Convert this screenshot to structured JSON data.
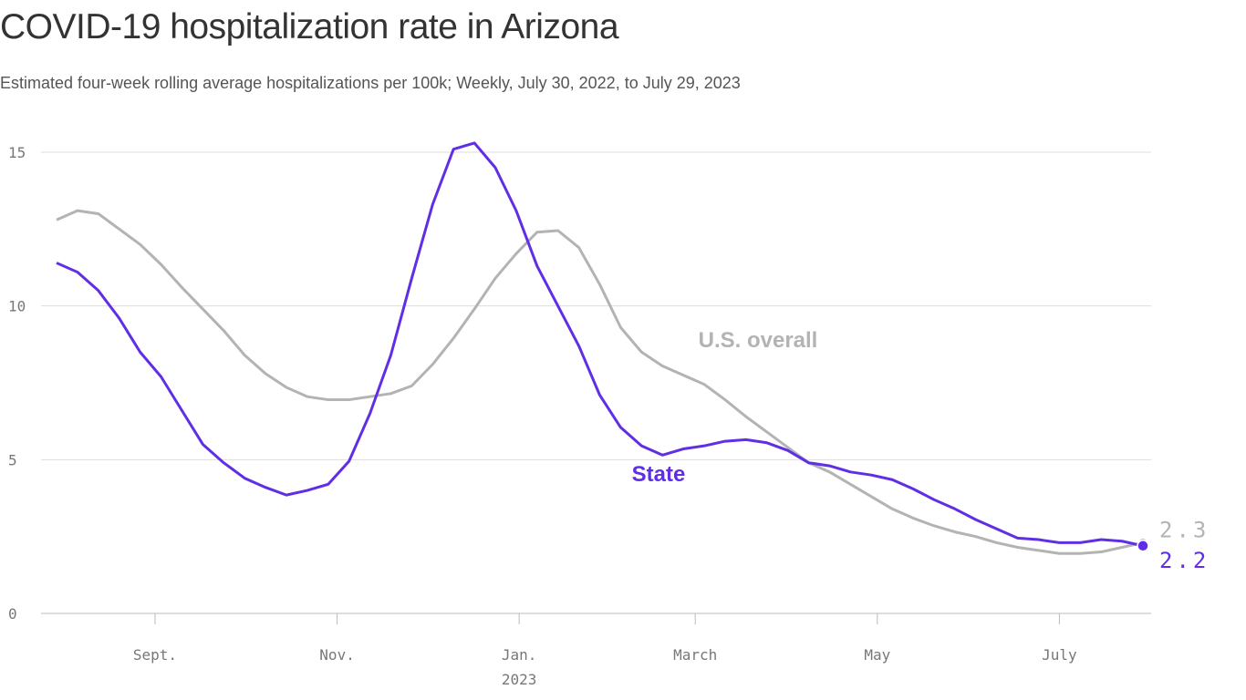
{
  "chart_data": {
    "type": "line",
    "title": "COVID-19 hospitalization rate in Arizona",
    "subtitle": "Estimated four-week rolling average hospitalizations per 100k; Weekly, July 30, 2022, to July 29, 2023",
    "x": [
      "2022-07-30",
      "2022-08-06",
      "2022-08-13",
      "2022-08-20",
      "2022-08-27",
      "2022-09-03",
      "2022-09-10",
      "2022-09-17",
      "2022-09-24",
      "2022-10-01",
      "2022-10-08",
      "2022-10-15",
      "2022-10-22",
      "2022-10-29",
      "2022-11-05",
      "2022-11-12",
      "2022-11-19",
      "2022-11-26",
      "2022-12-03",
      "2022-12-10",
      "2022-12-17",
      "2022-12-24",
      "2022-12-31",
      "2023-01-07",
      "2023-01-14",
      "2023-01-21",
      "2023-01-28",
      "2023-02-04",
      "2023-02-11",
      "2023-02-18",
      "2023-02-25",
      "2023-03-04",
      "2023-03-11",
      "2023-03-18",
      "2023-03-25",
      "2023-04-01",
      "2023-04-08",
      "2023-04-15",
      "2023-04-22",
      "2023-04-29",
      "2023-05-06",
      "2023-05-13",
      "2023-05-20",
      "2023-05-27",
      "2023-06-03",
      "2023-06-10",
      "2023-06-17",
      "2023-06-24",
      "2023-07-01",
      "2023-07-08",
      "2023-07-15",
      "2023-07-22",
      "2023-07-29"
    ],
    "series": [
      {
        "name": "State",
        "color": "#5f2ee5",
        "values": [
          11.4,
          11.1,
          10.5,
          9.6,
          8.5,
          7.7,
          6.6,
          5.5,
          4.9,
          4.4,
          4.1,
          3.85,
          4.0,
          4.2,
          4.95,
          6.5,
          8.4,
          10.9,
          13.3,
          15.1,
          15.3,
          14.5,
          13.1,
          11.3,
          10.0,
          8.7,
          7.1,
          6.05,
          5.45,
          5.15,
          5.35,
          5.45,
          5.6,
          5.65,
          5.55,
          5.3,
          4.9,
          4.8,
          4.6,
          4.5,
          4.35,
          4.05,
          3.7,
          3.4,
          3.05,
          2.75,
          2.45,
          2.4,
          2.3,
          2.3,
          2.4,
          2.35,
          2.2
        ]
      },
      {
        "name": "U.S. overall",
        "color": "#b3b3b3",
        "values": [
          12.8,
          13.1,
          13.0,
          12.5,
          12.0,
          11.35,
          10.6,
          9.9,
          9.2,
          8.4,
          7.8,
          7.35,
          7.05,
          6.95,
          6.95,
          7.05,
          7.15,
          7.4,
          8.1,
          8.95,
          9.9,
          10.9,
          11.7,
          12.4,
          12.45,
          11.9,
          10.7,
          9.3,
          8.5,
          8.05,
          7.75,
          7.45,
          6.95,
          6.4,
          5.9,
          5.4,
          4.9,
          4.6,
          4.2,
          3.8,
          3.4,
          3.1,
          2.85,
          2.65,
          2.5,
          2.3,
          2.15,
          2.05,
          1.95,
          1.95,
          2.0,
          2.15,
          2.3
        ]
      }
    ],
    "xlim": [
      "2022-07-30",
      "2023-07-29"
    ],
    "xticks": [
      {
        "value": "2022-09-01",
        "label": "Sept."
      },
      {
        "value": "2022-11-01",
        "label": "Nov."
      },
      {
        "value": "2023-01-01",
        "label": "Jan.",
        "sublabel": "2023"
      },
      {
        "value": "2023-03-01",
        "label": "March"
      },
      {
        "value": "2023-05-01",
        "label": "May"
      },
      {
        "value": "2023-07-01",
        "label": "July"
      }
    ],
    "ylim": [
      0,
      15
    ],
    "yticks": [
      0,
      5,
      10,
      15
    ],
    "grid": true
  }
}
